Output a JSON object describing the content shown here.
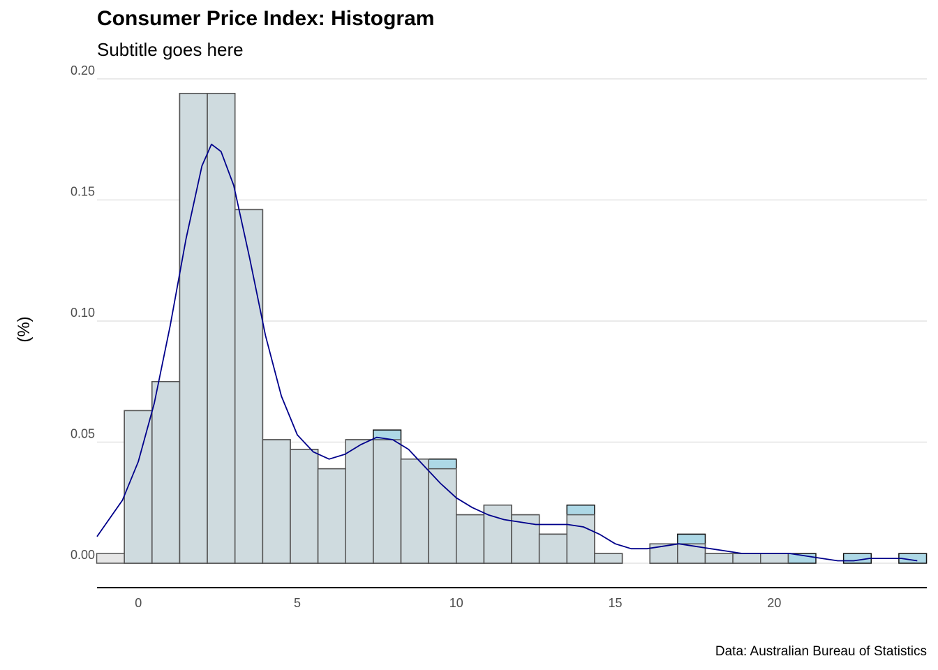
{
  "chart_data": {
    "type": "bar",
    "title": "Consumer Price Index: Histogram",
    "subtitle": "Subtitle goes here",
    "xlabel": "",
    "ylabel": "(%)",
    "caption": "Data: Australian Bureau of Statistics",
    "xlim": [
      -1.3,
      24.8
    ],
    "ylim": [
      -0.01,
      0.2
    ],
    "x_ticks": [
      0,
      5,
      10,
      15,
      20
    ],
    "x_tick_labels": [
      "0",
      "5",
      "10",
      "15",
      "20"
    ],
    "y_ticks": [
      0.0,
      0.05,
      0.1,
      0.15,
      0.2
    ],
    "y_tick_labels": [
      "0.00",
      "0.05",
      "0.10",
      "0.15",
      "0.20"
    ],
    "grid": "horizontal",
    "legend": "none",
    "bin_width": 0.87,
    "bin_starts": [
      -1.31,
      -0.44,
      0.43,
      1.3,
      2.17,
      3.04,
      3.91,
      4.78,
      5.65,
      6.52,
      7.39,
      8.26,
      9.13,
      10.0,
      10.87,
      11.74,
      12.61,
      13.48,
      14.35,
      15.22,
      16.09,
      16.96,
      17.83,
      18.7,
      19.57,
      20.44,
      21.31,
      22.18,
      23.05,
      23.92
    ],
    "series": [
      {
        "fill": "#add8e6",
        "values": [
          0.0,
          0.063,
          0.075,
          0.194,
          0.194,
          0.146,
          0.051,
          0.047,
          0.039,
          0.051,
          0.055,
          0.043,
          0.043,
          0.02,
          0.024,
          0.02,
          0.012,
          0.024,
          0.004,
          0.0,
          0.008,
          0.012,
          0.004,
          0.004,
          0.004,
          0.004,
          0.0,
          0.004,
          0.0,
          0.004
        ]
      },
      {
        "fill": "#dddddd",
        "values": [
          0.004,
          0.063,
          0.075,
          0.194,
          0.194,
          0.146,
          0.051,
          0.047,
          0.039,
          0.051,
          0.051,
          0.043,
          0.039,
          0.02,
          0.024,
          0.02,
          0.012,
          0.02,
          0.004,
          0.0,
          0.008,
          0.008,
          0.004,
          0.004,
          0.004,
          0.0,
          0.0,
          0.0,
          0.0,
          0.0
        ]
      }
    ],
    "density": {
      "color": "#00008b",
      "x": [
        -1.3,
        -0.5,
        0.0,
        0.5,
        1.0,
        1.5,
        2.0,
        2.3,
        2.6,
        3.0,
        3.5,
        4.0,
        4.5,
        5.0,
        5.5,
        6.0,
        6.5,
        7.0,
        7.5,
        8.0,
        8.5,
        9.0,
        9.5,
        10.0,
        10.5,
        11.0,
        11.5,
        12.0,
        12.5,
        13.0,
        13.5,
        14.0,
        14.5,
        15.0,
        15.5,
        16.0,
        16.5,
        17.0,
        17.5,
        18.0,
        18.5,
        19.0,
        19.5,
        20.0,
        20.5,
        21.0,
        21.5,
        22.0,
        22.5,
        23.0,
        23.5,
        24.0,
        24.5
      ],
      "y": [
        0.011,
        0.026,
        0.042,
        0.066,
        0.098,
        0.134,
        0.164,
        0.173,
        0.17,
        0.156,
        0.126,
        0.094,
        0.069,
        0.053,
        0.046,
        0.043,
        0.045,
        0.049,
        0.052,
        0.051,
        0.047,
        0.04,
        0.033,
        0.027,
        0.023,
        0.02,
        0.018,
        0.017,
        0.016,
        0.016,
        0.016,
        0.015,
        0.012,
        0.008,
        0.006,
        0.006,
        0.007,
        0.008,
        0.007,
        0.006,
        0.005,
        0.004,
        0.004,
        0.004,
        0.004,
        0.003,
        0.002,
        0.001,
        0.001,
        0.002,
        0.002,
        0.002,
        0.001
      ]
    }
  }
}
